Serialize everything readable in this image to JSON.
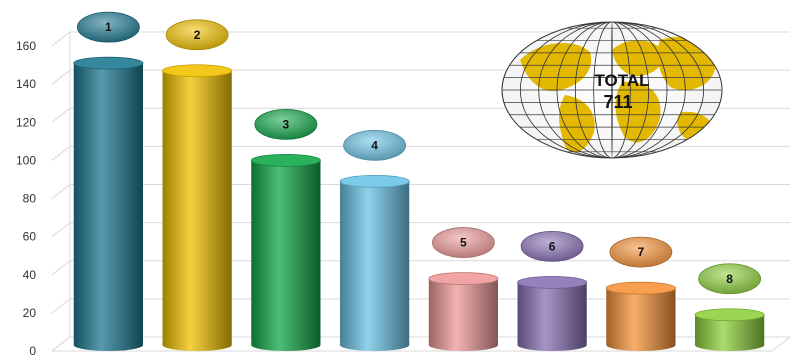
{
  "chart_data": {
    "type": "bar",
    "categories": [
      "1",
      "2",
      "3",
      "4",
      "5",
      "6",
      "7",
      "8"
    ],
    "values": [
      151,
      147,
      100,
      89,
      38,
      36,
      33,
      19
    ],
    "ylim": [
      0,
      160
    ],
    "yticks": [
      0,
      20,
      40,
      60,
      80,
      100,
      120,
      140,
      160
    ],
    "grid": true,
    "legend": "none",
    "bar_colors": [
      "#1f7a93",
      "#f2c200",
      "#13a84a",
      "#6cc4e6",
      "#ef9a99",
      "#8a72b6",
      "#f6943a",
      "#8fd13f"
    ],
    "annotation": {
      "line1": "TOTAL",
      "line2": "711",
      "icon": "globe-icon"
    },
    "colors": {
      "grid": "#d9d9d9",
      "axis_text": "#333333",
      "globe_ocean": "#ffffff",
      "globe_land": "#e3b800",
      "globe_line": "#3a3a3a"
    }
  }
}
